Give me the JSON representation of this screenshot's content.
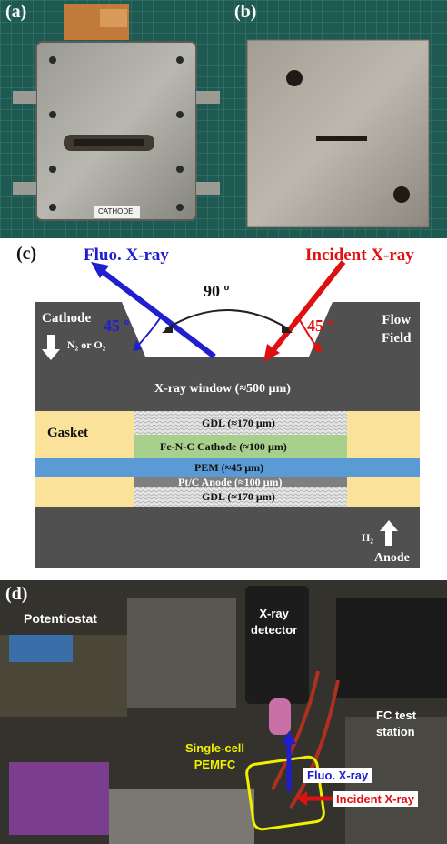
{
  "panels": {
    "a": {
      "label": "(a)",
      "tag_text": "CATHODE"
    },
    "b": {
      "label": "(b)"
    },
    "c": {
      "label": "(c)",
      "fluo_xray": "Fluo. X-ray",
      "incident_xray": "Incident X-ray",
      "angle_90": "90 º",
      "angle_45_left": "45 º",
      "angle_45_right": "45 º",
      "cathode": "Cathode",
      "gas_in": "N₂ or O₂",
      "flow_field": "Flow\nField",
      "window": "X-ray window (≈500 µm)",
      "gasket": "Gasket",
      "gdl_top": "GDL (≈170 µm)",
      "cathode_layer": "Fe-N-C Cathode (≈100 µm)",
      "pem": "PEM (≈45 µm)",
      "anode_layer": "Pt/C Anode (≈100 µm)",
      "gdl_bottom": "GDL (≈170 µm)",
      "h2": "H₂",
      "anode": "Anode"
    },
    "d": {
      "label": "(d)",
      "potentiostat": "Potentiostat",
      "detector": "X-ray\ndetector",
      "fc_station": "FC test\nstation",
      "single_cell": "Single-cell\nPEMFC",
      "fluo_xray": "Fluo. X-ray",
      "incident_xray": "Incident X-ray"
    }
  },
  "colors": {
    "dark_gray": "#505050",
    "gasket": "#fbe29b",
    "cathode_layer": "#a8d08d",
    "pem": "#5b9bd5",
    "anode_layer": "#7f7f7f",
    "fluo": "#1f1fd0",
    "incident": "#e01010"
  }
}
